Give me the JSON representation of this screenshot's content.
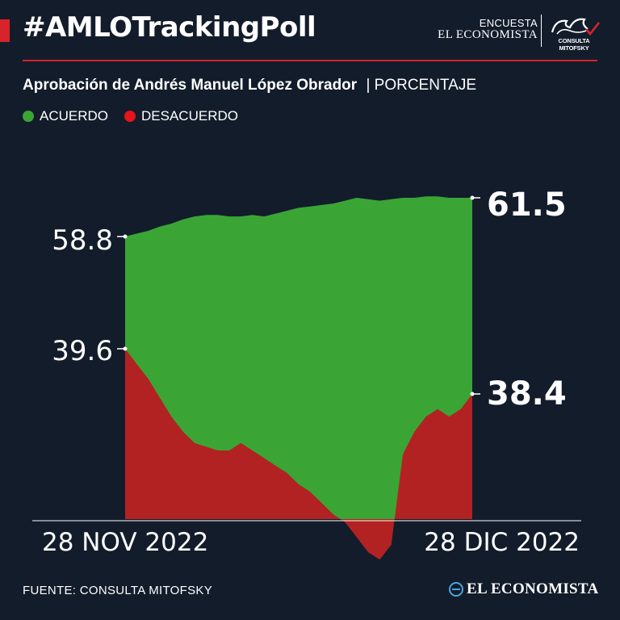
{
  "header": {
    "hashtag": "#AMLOTrackingPoll",
    "brand_line1": "ENCUESTA",
    "brand_line2": "EL ECONOMISTA",
    "partner_logo_text": "CONSULTA MITOFSKY",
    "accent_color": "#d8232a"
  },
  "subtitle": {
    "main": "Aprobación de Andrés Manuel López Obrador",
    "unit": "| PORCENTAJE"
  },
  "legend": [
    {
      "label": "ACUERDO",
      "color": "#3aa535"
    },
    {
      "label": "DESACUERDO",
      "color": "#e3141b"
    }
  ],
  "chart_data": {
    "type": "area",
    "x_start_label": "28 NOV 2022",
    "x_end_label": "28 DIC 2022",
    "series": [
      {
        "name": "ACUERDO",
        "color": "#3aa535",
        "values": [
          58.8,
          59.0,
          59.2,
          59.5,
          59.7,
          60.0,
          60.2,
          60.3,
          60.3,
          60.2,
          60.2,
          60.3,
          60.2,
          60.4,
          60.6,
          60.8,
          60.9,
          61.0,
          61.1,
          61.3,
          61.5,
          61.4,
          61.3,
          61.4,
          61.5,
          61.5,
          61.6,
          61.6,
          61.5,
          61.5,
          61.5
        ]
      },
      {
        "name": "DESACUERDO",
        "color": "#b22222",
        "values": [
          39.6,
          39.2,
          38.8,
          38.3,
          37.8,
          37.4,
          37.1,
          37.0,
          36.9,
          36.9,
          37.1,
          36.9,
          36.7,
          36.5,
          36.3,
          36.0,
          35.8,
          35.5,
          35.2,
          35.0,
          34.6,
          34.2,
          34.0,
          34.4,
          36.8,
          37.4,
          37.8,
          38.0,
          37.8,
          38.0,
          38.4
        ]
      }
    ],
    "labels": {
      "acuerdo_start": "58.8",
      "acuerdo_end": "61.5",
      "desacuerdo_start": "39.6",
      "desacuerdo_end": "38.4"
    }
  },
  "footer": {
    "source": "FUENTE: CONSULTA MITOFSKY",
    "brand": "EL ECONOMISTA"
  }
}
